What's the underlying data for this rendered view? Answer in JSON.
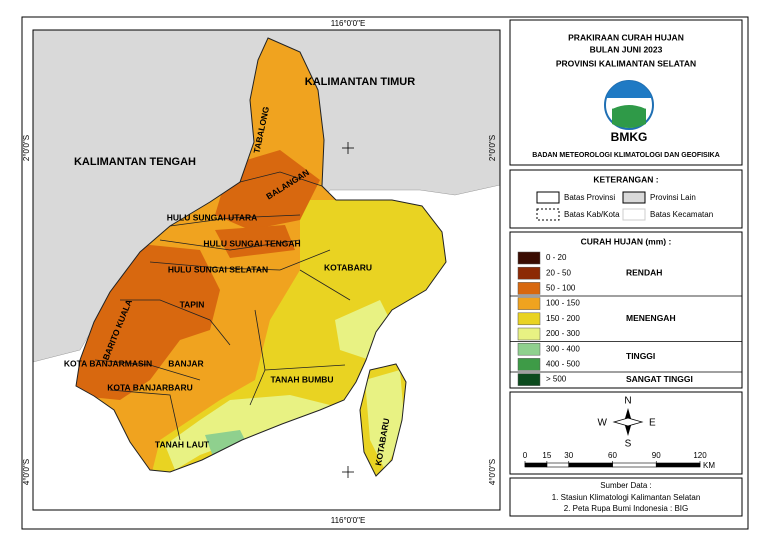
{
  "map": {
    "coordinate_labels": {
      "top": "116°0'0\"E",
      "bottom": "116°0'0\"E",
      "left_upper": "2°0'0\"S",
      "right_upper": "2°0'0\"S",
      "left_lower": "4°0'0\"S",
      "right_lower": "4°0'0\"S"
    },
    "region_labels": [
      "KALIMANTAN TIMUR",
      "KALIMANTAN TENGAH",
      "TABALONG",
      "BALANGAN",
      "HULU SUNGAI UTARA",
      "HULU SUNGAI TENGAH",
      "HULU SUNGAI SELATAN",
      "TAPIN",
      "BARITO KUALA",
      "KOTA BANJARMASIN",
      "BANJAR",
      "KOTA BANJARBARU",
      "KOTABARU",
      "TANAH BUMBU",
      "KOTABARU",
      "TANAH LAUT"
    ]
  },
  "title_panel": {
    "lines": [
      "PRAKIRAAN CURAH HUJAN",
      "BULAN JUNI 2023",
      "PROVINSI KALIMANTAN SELATAN"
    ],
    "logo_text": "BMKG",
    "agency": "BADAN METEOROLOGI KLIMATOLOGI DAN GEOFISIKA"
  },
  "keterangan": {
    "title": "KETERANGAN :",
    "items": [
      "Batas Provinsi",
      "Provinsi Lain",
      "Batas Kab/Kota",
      "Batas Kecamatan"
    ]
  },
  "curah_hujan": {
    "title": "CURAH HUJAN (mm) :",
    "classes": [
      {
        "label": "0 - 20",
        "color": "#3a0c02"
      },
      {
        "label": "20 - 50",
        "color": "#8c2a05"
      },
      {
        "label": "50 - 100",
        "color": "#d8680f"
      },
      {
        "label": "100 - 150",
        "color": "#f0a31f"
      },
      {
        "label": "150 - 200",
        "color": "#e9d322"
      },
      {
        "label": "200 - 300",
        "color": "#e8f283"
      },
      {
        "label": "300 - 400",
        "color": "#8fd08e"
      },
      {
        "label": "400 - 500",
        "color": "#3e9b47"
      },
      {
        "label": "> 500",
        "color": "#0b4a1d"
      }
    ],
    "groups": [
      "RENDAH",
      "MENENGAH",
      "TINGGI",
      "SANGAT TINGGI"
    ]
  },
  "compass": {
    "n": "N",
    "s": "S",
    "e": "E",
    "w": "W"
  },
  "scale_bar": {
    "ticks": [
      0,
      15,
      30,
      60,
      90,
      120
    ],
    "unit": "KM"
  },
  "source": {
    "title": "Sumber Data :",
    "items": [
      "1. Stasiun Klimatologi Kalimantan Selatan",
      "2. Peta Rupa Bumi Indonesia : BIG"
    ]
  }
}
